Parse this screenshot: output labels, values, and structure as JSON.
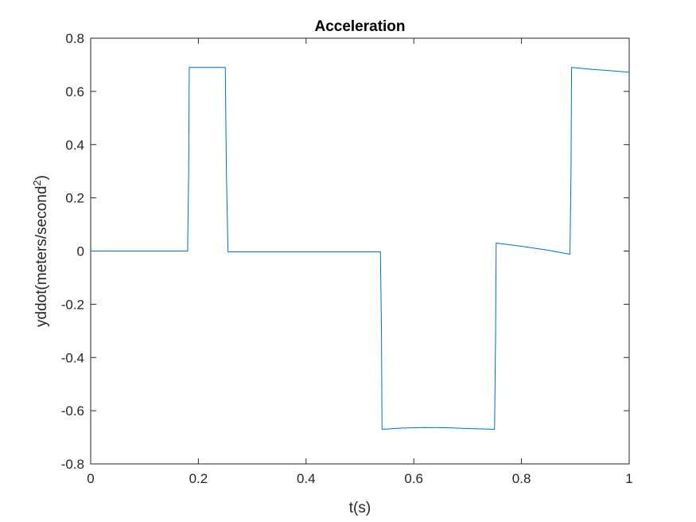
{
  "chart_data": {
    "type": "line",
    "title": "Acceleration",
    "xlabel": "t(s)",
    "ylabel": {
      "base": "yddot(meters/second",
      "superscript": "2",
      "suffix": ")"
    },
    "xlim": [
      0,
      1
    ],
    "ylim": [
      -0.8,
      0.8
    ],
    "xticks": [
      0,
      0.2,
      0.4,
      0.6,
      0.8,
      1
    ],
    "xtick_labels": [
      "0",
      "0.2",
      "0.4",
      "0.6",
      "0.8",
      "1"
    ],
    "yticks": [
      -0.8,
      -0.6,
      -0.4,
      -0.2,
      0,
      0.2,
      0.4,
      0.6,
      0.8
    ],
    "ytick_labels": [
      "-0.8",
      "-0.6",
      "-0.4",
      "-0.2",
      "0",
      "0.2",
      "0.4",
      "0.6",
      "0.8"
    ],
    "grid": false,
    "box": true,
    "series": [
      {
        "color": "#0072BD",
        "x": [
          0,
          0.18,
          0.182,
          0.183,
          0.2,
          0.22,
          0.25,
          0.252,
          0.255,
          0.3,
          0.4,
          0.5,
          0.538,
          0.54,
          0.541,
          0.58,
          0.62,
          0.66,
          0.7,
          0.75,
          0.752,
          0.753,
          0.8,
          0.85,
          0.89,
          0.892,
          0.893,
          0.93,
          0.97,
          1
        ],
        "y": [
          0,
          0,
          0.3,
          0.69,
          0.69,
          0.69,
          0.69,
          0.3,
          -0.003,
          -0.003,
          -0.003,
          -0.003,
          -0.003,
          -0.3,
          -0.67,
          -0.665,
          -0.663,
          -0.664,
          -0.667,
          -0.67,
          -0.3,
          0.03,
          0.018,
          0.003,
          -0.012,
          0.3,
          0.69,
          0.683,
          0.677,
          0.672
        ]
      }
    ]
  }
}
